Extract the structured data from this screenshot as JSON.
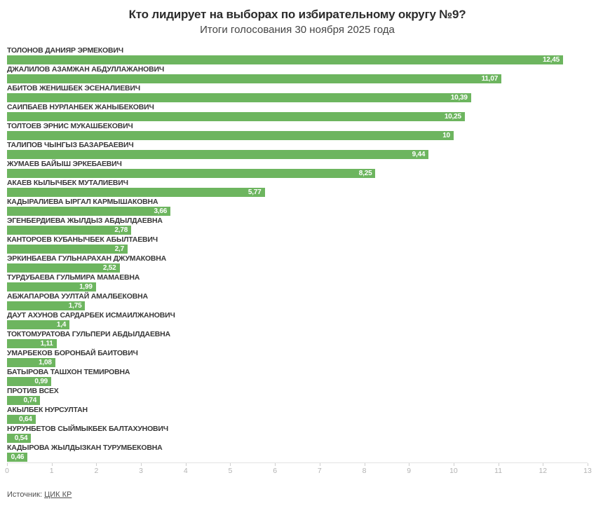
{
  "header": {
    "title": "Кто лидирует на выборах по избирательному округу №9?",
    "subtitle": "Итоги голосования 30 ноября 2025 года"
  },
  "chart_data": {
    "type": "bar",
    "orientation": "horizontal",
    "title": "Кто лидирует на выборах по избирательному округу №9?",
    "subtitle": "Итоги голосования 30 ноября 2025 года",
    "categories": [
      "ТОЛОНОВ ДАНИЯР ЭРМЕКОВИЧ",
      "ДЖАЛИЛОВ АЗАМЖАН АБДУЛЛАЖАНОВИЧ",
      "АБИТОВ ЖЕНИШБЕК ЭСЕНАЛИЕВИЧ",
      "САИПБАЕВ НУРЛАНБЕК ЖАНЫБЕКОВИЧ",
      "ТОЛТОЕВ ЭРНИС МУКАШБЕКОВИЧ",
      "ТАЛИПОВ ЧЫНГЫЗ БАЗАРБАЕВИЧ",
      "ЖУМАЕВ БАЙЫШ ЭРКЕБАЕВИЧ",
      "АКАЕВ КЫЛЫЧБЕК МУТАЛИЕВИЧ",
      "КАДЫРАЛИЕВА ЫРГАЛ КАРМЫШАКОВНА",
      "ЭГЕНБЕРДИЕВА ЖЫЛДЫЗ АБДЫЛДАЕВНА",
      "КАНТОРОЕВ КУБАНЫЧБЕК АБЫЛТАЕВИЧ",
      "ЭРКИНБАЕВА ГУЛЬНАРАХАН ДЖУМАКОВНА",
      "ТУРДУБАЕВА ГУЛЬМИРА МАМАЕВНА",
      "АБЖАПАРОВА УУЛТАЙ АМАЛБЕКОВНА",
      "ДАУТ АХУНОВ САРДАРБЕК ИСМАИЛЖАНОВИЧ",
      "ТОКТОМУРАТОВА ГУЛЬПЕРИ АБДЫЛДАЕВНА",
      "УМАРБЕКОВ БОРОНБАЙ БАИТОВИЧ",
      "БАТЫРОВА ТАШХОН ТЕМИРОВНА",
      "ПРОТИВ ВСЕХ",
      "АКЫЛБЕК НУРСУЛТАН",
      "НУРУНБЕТОВ СЫЙМЫКБЕК БАЛТАХУНОВИЧ",
      "КАДЫРОВА ЖЫЛДЫЗКАН ТУРУМБЕКОВНА"
    ],
    "values": [
      12.45,
      11.07,
      10.39,
      10.25,
      10,
      9.44,
      8.25,
      5.77,
      3.66,
      2.78,
      2.7,
      2.52,
      1.99,
      1.75,
      1.4,
      1.11,
      1.08,
      0.99,
      0.74,
      0.64,
      0.54,
      0.46
    ],
    "value_labels": [
      "12,45",
      "11,07",
      "10,39",
      "10,25",
      "10",
      "9,44",
      "8,25",
      "5,77",
      "3,66",
      "2,78",
      "2,7",
      "2,52",
      "1,99",
      "1,75",
      "1,4",
      "1,11",
      "1,08",
      "0,99",
      "0,74",
      "0,64",
      "0,54",
      "0,46"
    ],
    "xlabel": "",
    "ylabel": "",
    "xlim": [
      0,
      13
    ],
    "x_ticks": [
      "0",
      "1",
      "2",
      "3",
      "4",
      "5",
      "6",
      "7",
      "8",
      "9",
      "10",
      "11",
      "12",
      "13"
    ],
    "grid": false,
    "legend": false,
    "bar_color": "#6db55f",
    "value_label_color": "#ffffff"
  },
  "footer": {
    "source_label": "Источник:",
    "source_link": "ЦИК КР"
  }
}
